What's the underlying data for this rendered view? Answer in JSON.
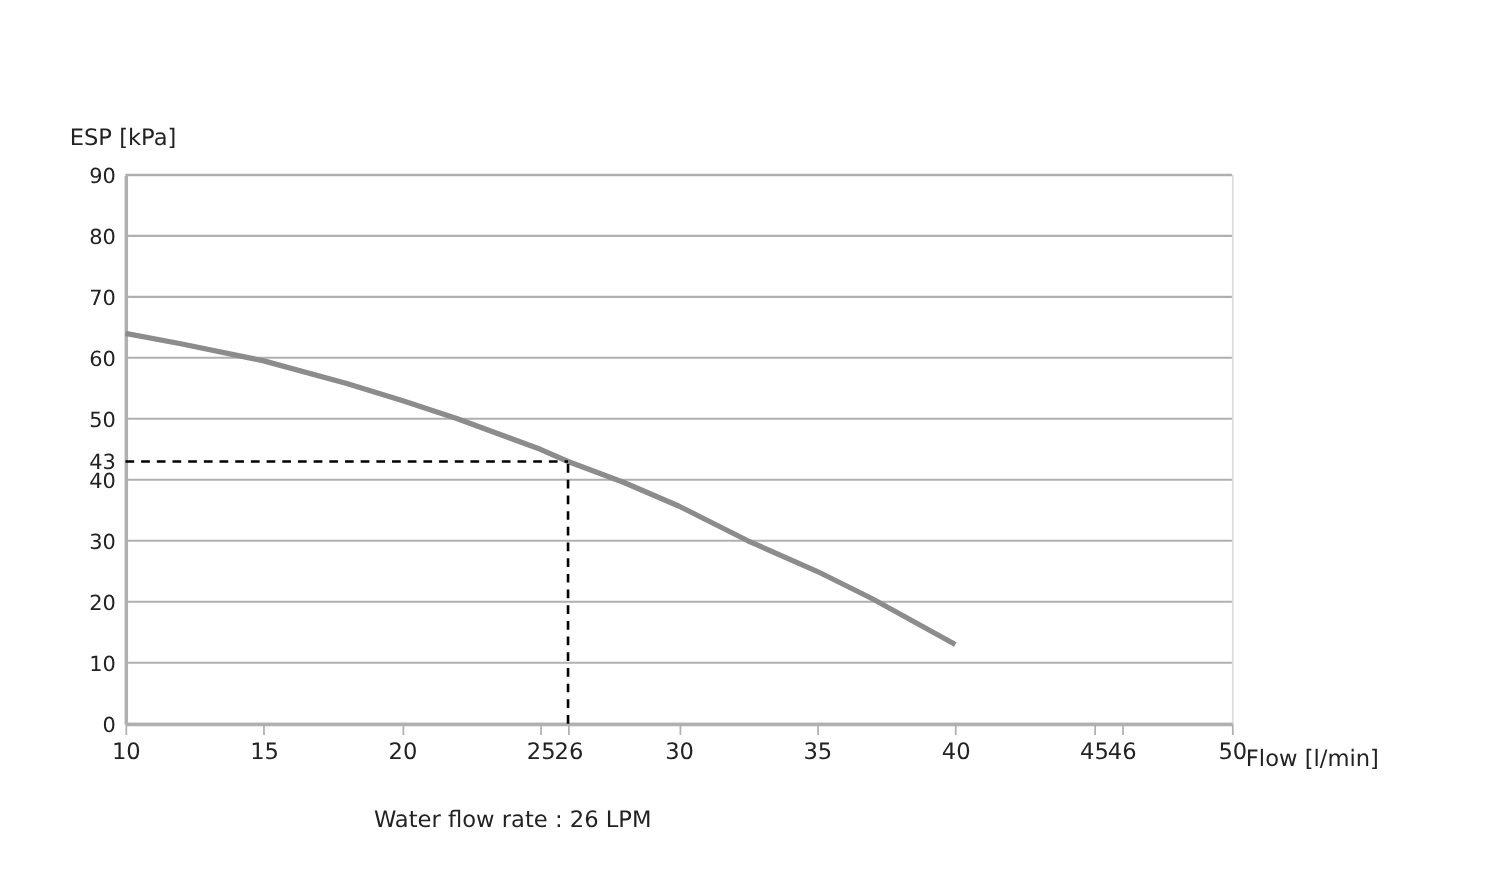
{
  "chart_data": {
    "type": "line",
    "xlabel": "Flow [l/min]",
    "ylabel": "ESP [kPa]",
    "x": [
      10,
      12,
      15,
      18,
      20,
      22,
      25,
      26,
      28,
      30,
      32.5,
      35,
      37,
      40
    ],
    "series": [
      {
        "color": "#8c8c8c",
        "values": [
          64,
          62.3,
          59.5,
          55.8,
          53,
          50,
          45,
          43,
          39.6,
          35.7,
          30,
          25,
          20.5,
          13
        ]
      }
    ],
    "xlim": [
      10,
      50
    ],
    "xticks": [
      10,
      15,
      20,
      25,
      26,
      30,
      35,
      40,
      45,
      46,
      50
    ],
    "ylim": [
      0,
      90
    ],
    "yticks": [
      0,
      10,
      20,
      30,
      40,
      43,
      50,
      60,
      70,
      80,
      90
    ],
    "grid": "y",
    "marker": "none",
    "line_style": "solid",
    "ref_lines": [
      {
        "axis": "y",
        "value": 43,
        "color": "#000000",
        "line_style": "dashed"
      },
      {
        "axis": "x",
        "value": 26,
        "color": "#000000",
        "line_style": "dashed"
      }
    ],
    "annotations": [
      "Water flow rate : 26 LPM"
    ]
  }
}
